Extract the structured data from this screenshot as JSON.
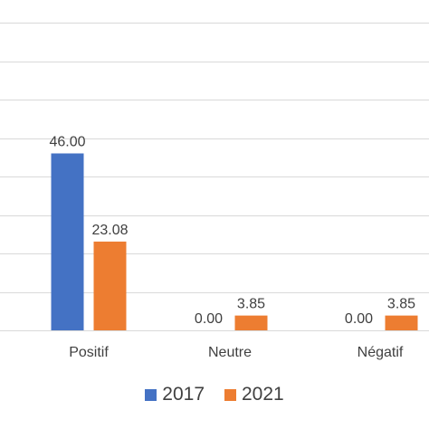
{
  "chart_data": {
    "type": "bar",
    "categories": [
      "Positif",
      "Neutre",
      "Négatif"
    ],
    "series": [
      {
        "name": "2017",
        "values": [
          46.0,
          0.0,
          0.0
        ],
        "labels": [
          "46.00",
          "0.00",
          "0.00"
        ],
        "color": "#4472C4"
      },
      {
        "name": "2021",
        "values": [
          23.08,
          3.85,
          3.85
        ],
        "labels": [
          "23.08",
          "3.85",
          "3.85"
        ],
        "color": "#ED7D31"
      }
    ],
    "ylim": [
      0,
      80
    ],
    "gridline_values": [
      0,
      10,
      20,
      30,
      40,
      50,
      60,
      70,
      80
    ],
    "grid": true,
    "legend_position": "bottom",
    "gridline_color": "#D9D9D9"
  }
}
